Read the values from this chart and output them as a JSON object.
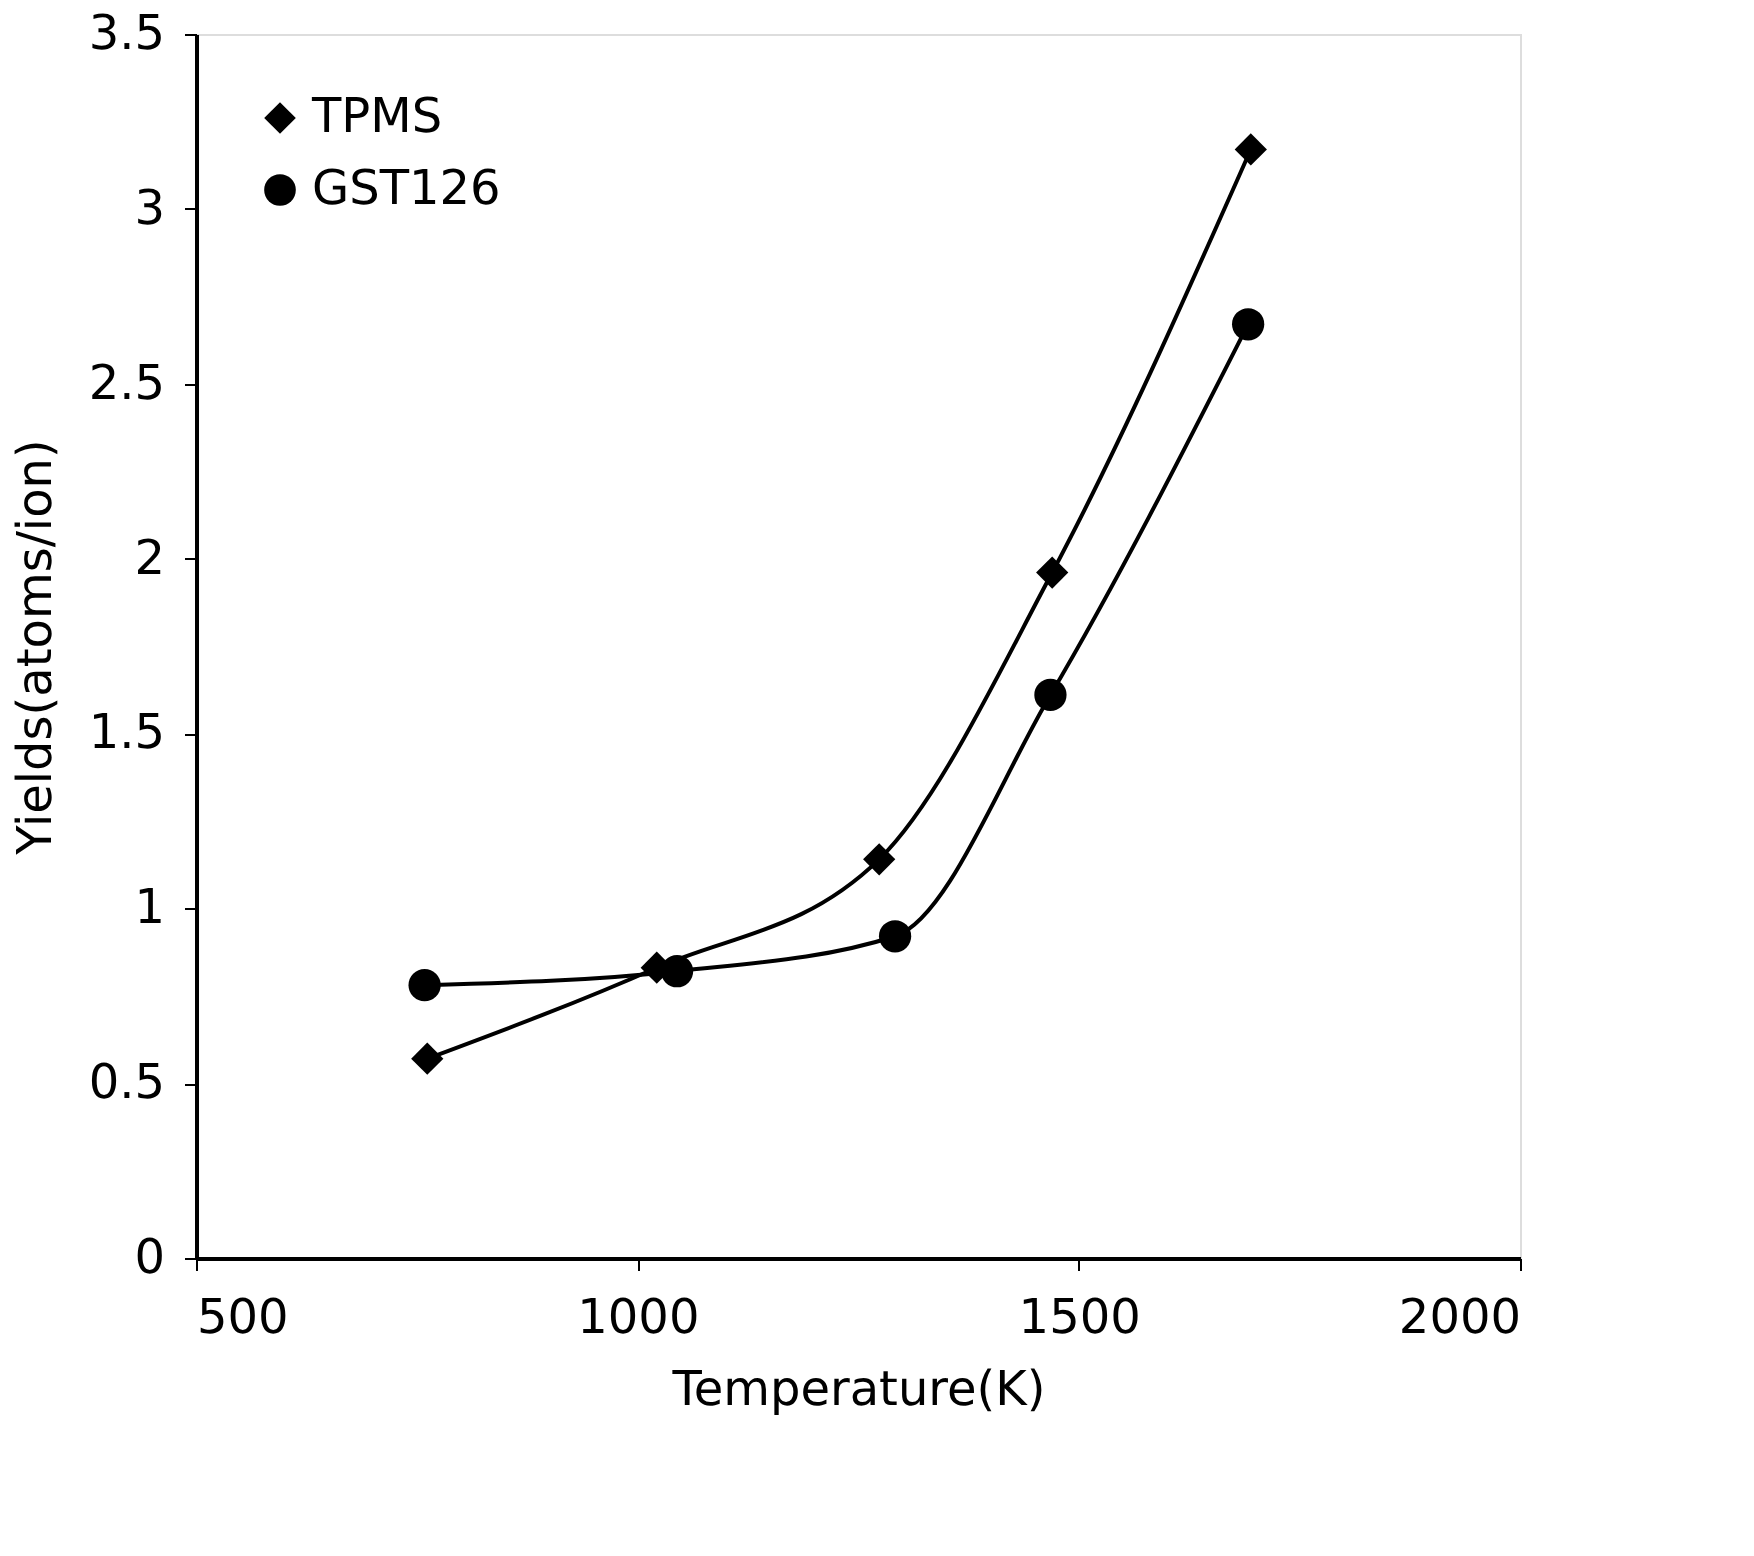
{
  "chart_data": {
    "type": "line",
    "xlabel": "Temperature(K)",
    "ylabel": "Yields(atoms/ion)",
    "xlim": [
      500,
      2000
    ],
    "xticks": [
      500,
      1000,
      1500,
      2000
    ],
    "ylim": [
      0,
      3.5
    ],
    "yticks": [
      0,
      0.5,
      1,
      1.5,
      2,
      2.5,
      3,
      3.5
    ],
    "grid": false,
    "legend": "top left",
    "line_style": "solid",
    "series": [
      {
        "name": "TPMS",
        "color": "#000000",
        "marker": "diamond",
        "x": [
          762,
          1022,
          1274,
          1470,
          1695
        ],
        "values": [
          0.57,
          0.83,
          1.14,
          1.96,
          3.17
        ]
      },
      {
        "name": "GST126",
        "color": "#000000",
        "marker": "circle",
        "x": [
          759,
          1045,
          1292,
          1468,
          1692
        ],
        "values": [
          0.78,
          0.82,
          0.92,
          1.61,
          2.67
        ]
      }
    ]
  }
}
